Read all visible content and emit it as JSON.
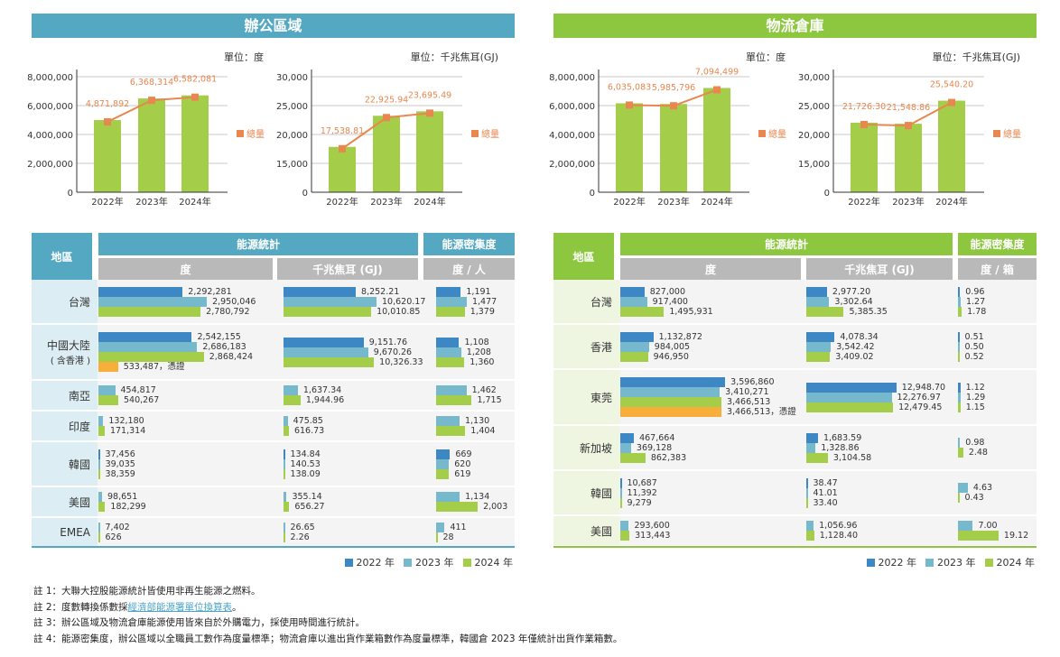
{
  "colors": {
    "office": "#55a8c1",
    "warehouse": "#8dc63f",
    "gray": "#b9b9b9",
    "s2022": "#3d87c4",
    "s2023": "#76b9cc",
    "s2024": "#a4cd4a",
    "cert": "#f7ae3b",
    "line": "#e8874f",
    "office_region_bg": "#dceef4",
    "warehouse_region_bg": "#eef6e2"
  },
  "office": {
    "title": "辦公區域",
    "table": {
      "region_header": "地區",
      "stats_header": "能源統計",
      "density_header": "能源密集度",
      "sub_kwh": "度",
      "sub_gj": "千兆焦耳 (GJ)",
      "sub_density": "度 / 人"
    }
  },
  "warehouse": {
    "title": "物流倉庫",
    "table": {
      "region_header": "地區",
      "stats_header": "能源統計",
      "density_header": "能源密集度",
      "sub_kwh": "度",
      "sub_gj": "千兆焦耳 (GJ)",
      "sub_density": "度 / 箱"
    }
  },
  "chart_data": [
    {
      "type": "bar",
      "panel": "office",
      "unit": "單位：度",
      "legend": "總量",
      "categories": [
        "2022年",
        "2023年",
        "2024年"
      ],
      "values": [
        4871892,
        6368314,
        6582081
      ],
      "labels": [
        "4,871,892",
        "6,368,314",
        "6,582,081"
      ],
      "ticks": [
        0,
        2000000,
        4000000,
        6000000,
        8000000
      ],
      "tick_labels": [
        "0",
        "2,000,000",
        "4,000,000",
        "6,000,000",
        "8,000,000"
      ]
    },
    {
      "type": "bar",
      "panel": "office",
      "unit": "單位：千兆焦耳(GJ)",
      "legend": "總量",
      "categories": [
        "2022年",
        "2023年",
        "2024年"
      ],
      "values": [
        17538.81,
        22925.94,
        23695.49
      ],
      "labels": [
        "17,538.81",
        "22,925.94",
        "23,695.49"
      ],
      "ticks": [
        0,
        15000,
        20000,
        25000,
        30000
      ],
      "tick_labels": [
        "0",
        "15,000",
        "20,000",
        "25,000",
        "30,000"
      ]
    },
    {
      "type": "bar",
      "panel": "warehouse",
      "unit": "單位：度",
      "legend": "總量",
      "categories": [
        "2022年",
        "2023年",
        "2024年"
      ],
      "values": [
        6035083,
        5985796,
        7094499
      ],
      "labels": [
        "6,035,083",
        "5,985,796",
        "7,094,499"
      ],
      "ticks": [
        0,
        2000000,
        4000000,
        6000000,
        8000000
      ],
      "tick_labels": [
        "0",
        "2,000,000",
        "4,000,000",
        "6,000,000",
        "8,000,000"
      ]
    },
    {
      "type": "bar",
      "panel": "warehouse",
      "unit": "單位：千兆焦耳(GJ)",
      "legend": "總量",
      "categories": [
        "2022年",
        "2023年",
        "2024年"
      ],
      "values": [
        21726.3,
        21548.86,
        25540.2
      ],
      "labels": [
        "21,726.30",
        "21,548.86",
        "25,540.20"
      ],
      "ticks": [
        0,
        15000,
        20000,
        25000,
        30000
      ],
      "tick_labels": [
        "0",
        "15,000",
        "20,000",
        "25,000",
        "30,000"
      ]
    }
  ],
  "tables": {
    "office": [
      {
        "region": "台灣",
        "kwh": [
          [
            "2022",
            "2,292,281"
          ],
          [
            "2023",
            "2,950,046"
          ],
          [
            "2024",
            "2,780,792"
          ]
        ],
        "gj": [
          [
            "2022",
            "8,252.21"
          ],
          [
            "2023",
            "10,620.17"
          ],
          [
            "2024",
            "10,010.85"
          ]
        ],
        "density": [
          [
            "2022",
            "1,191"
          ],
          [
            "2023",
            "1,477"
          ],
          [
            "2024",
            "1,379"
          ]
        ]
      },
      {
        "region": "中國大陸",
        "note": "( 含香港 )",
        "kwh": [
          [
            "2022",
            "2,542,155"
          ],
          [
            "2023",
            "2,686,183"
          ],
          [
            "2024",
            "2,868,424"
          ],
          [
            "cert",
            "533,487，憑證"
          ]
        ],
        "gj": [
          [
            "2022",
            "9,151.76"
          ],
          [
            "2023",
            "9,670.26"
          ],
          [
            "2024",
            "10,326.33"
          ]
        ],
        "density": [
          [
            "2022",
            "1,108"
          ],
          [
            "2023",
            "1,208"
          ],
          [
            "2024",
            "1,360"
          ]
        ]
      },
      {
        "region": "南亞",
        "kwh": [
          [
            "2023",
            "454,817"
          ],
          [
            "2024",
            "540,267"
          ]
        ],
        "gj": [
          [
            "2023",
            "1,637.34"
          ],
          [
            "2024",
            "1,944.96"
          ]
        ],
        "density": [
          [
            "2023",
            "1,462"
          ],
          [
            "2024",
            "1,715"
          ]
        ]
      },
      {
        "region": "印度",
        "kwh": [
          [
            "2023",
            "132,180"
          ],
          [
            "2024",
            "171,314"
          ]
        ],
        "gj": [
          [
            "2023",
            "475.85"
          ],
          [
            "2024",
            "616.73"
          ]
        ],
        "density": [
          [
            "2023",
            "1,130"
          ],
          [
            "2024",
            "1,404"
          ]
        ]
      },
      {
        "region": "韓國",
        "kwh": [
          [
            "2022",
            "37,456"
          ],
          [
            "2023",
            "39,035"
          ],
          [
            "2024",
            "38,359"
          ]
        ],
        "gj": [
          [
            "2022",
            "134.84"
          ],
          [
            "2023",
            "140.53"
          ],
          [
            "2024",
            "138.09"
          ]
        ],
        "density": [
          [
            "2022",
            "669"
          ],
          [
            "2023",
            "620"
          ],
          [
            "2024",
            "619"
          ]
        ]
      },
      {
        "region": "美國",
        "kwh": [
          [
            "2023",
            "98,651"
          ],
          [
            "2024",
            "182,299"
          ]
        ],
        "gj": [
          [
            "2023",
            "355.14"
          ],
          [
            "2024",
            "656.27"
          ]
        ],
        "density": [
          [
            "2023",
            "1,134"
          ],
          [
            "2024",
            "2,003"
          ]
        ]
      },
      {
        "region": "EMEA",
        "kwh": [
          [
            "2023",
            "7,402"
          ],
          [
            "2024",
            "626"
          ]
        ],
        "gj": [
          [
            "2023",
            "26.65"
          ],
          [
            "2024",
            "2.26"
          ]
        ],
        "density": [
          [
            "2023",
            "411"
          ],
          [
            "2024",
            "28"
          ]
        ]
      }
    ],
    "warehouse": [
      {
        "region": "台灣",
        "kwh": [
          [
            "2022",
            "827,000"
          ],
          [
            "2023",
            "917,400"
          ],
          [
            "2024",
            "1,495,931"
          ]
        ],
        "gj": [
          [
            "2022",
            "2,977.20"
          ],
          [
            "2023",
            "3,302.64"
          ],
          [
            "2024",
            "5,385.35"
          ]
        ],
        "density": [
          [
            "2022",
            "0.96"
          ],
          [
            "2023",
            "1.27"
          ],
          [
            "2024",
            "1.78"
          ]
        ]
      },
      {
        "region": "香港",
        "kwh": [
          [
            "2022",
            "1,132,872"
          ],
          [
            "2023",
            "984,005"
          ],
          [
            "2024",
            "946,950"
          ]
        ],
        "gj": [
          [
            "2022",
            "4,078.34"
          ],
          [
            "2023",
            "3,542.42"
          ],
          [
            "2024",
            "3,409.02"
          ]
        ],
        "density": [
          [
            "2022",
            "0.51"
          ],
          [
            "2023",
            "0.50"
          ],
          [
            "2024",
            "0.52"
          ]
        ]
      },
      {
        "region": "東莞",
        "kwh": [
          [
            "2022",
            "3,596,860"
          ],
          [
            "2023",
            "3,410,271"
          ],
          [
            "2024",
            "3,466,513"
          ],
          [
            "cert",
            "3,466,513，憑證"
          ]
        ],
        "gj": [
          [
            "2022",
            "12,948.70"
          ],
          [
            "2023",
            "12,276.97"
          ],
          [
            "2024",
            "12,479.45"
          ]
        ],
        "density": [
          [
            "2022",
            "1.12"
          ],
          [
            "2023",
            "1.29"
          ],
          [
            "2024",
            "1.15"
          ]
        ]
      },
      {
        "region": "新加坡",
        "kwh": [
          [
            "2022",
            "467,664"
          ],
          [
            "2023",
            "369,128"
          ],
          [
            "2024",
            "862,383"
          ]
        ],
        "gj": [
          [
            "2022",
            "1,683.59"
          ],
          [
            "2023",
            "1,328.86"
          ],
          [
            "2024",
            "3,104.58"
          ]
        ],
        "density": [
          [
            "2023",
            "0.98"
          ],
          [
            "2024",
            "2.48"
          ]
        ]
      },
      {
        "region": "韓國",
        "kwh": [
          [
            "2022",
            "10,687"
          ],
          [
            "2023",
            "11,392"
          ],
          [
            "2024",
            "9,279"
          ]
        ],
        "gj": [
          [
            "2022",
            "38.47"
          ],
          [
            "2023",
            "41.01"
          ],
          [
            "2024",
            "33.40"
          ]
        ],
        "density": [
          [
            "2023",
            "4.63"
          ],
          [
            "2024",
            "0.43"
          ]
        ]
      },
      {
        "region": "美國",
        "kwh": [
          [
            "2023",
            "293,600"
          ],
          [
            "2024",
            "313,443"
          ]
        ],
        "gj": [
          [
            "2023",
            "1,056.96"
          ],
          [
            "2024",
            "1,128.40"
          ]
        ],
        "density": [
          [
            "2023",
            "7.00"
          ],
          [
            "2024",
            "19.12"
          ]
        ]
      }
    ]
  },
  "legend": {
    "y2022": "2022 年",
    "y2023": "2023 年",
    "y2024": "2024 年"
  },
  "notes": {
    "n1": "註 1：大聯大控股能源統計皆使用非再生能源之燃料。",
    "n2_prefix": "註 2：度數轉換係數採",
    "n2_link": "經濟部能源署單位換算表",
    "n2_suffix": "。",
    "n3": "註 3：辦公區域及物流倉庫能源使用皆來自於外購電力，採使用時間進行統計。",
    "n4": "註 4：能源密集度，辦公區域以全職員工數作為度量標準；物流倉庫以進出貨作業箱數作為度量標準，韓國倉 2023 年僅統計出貨作業箱數。"
  }
}
